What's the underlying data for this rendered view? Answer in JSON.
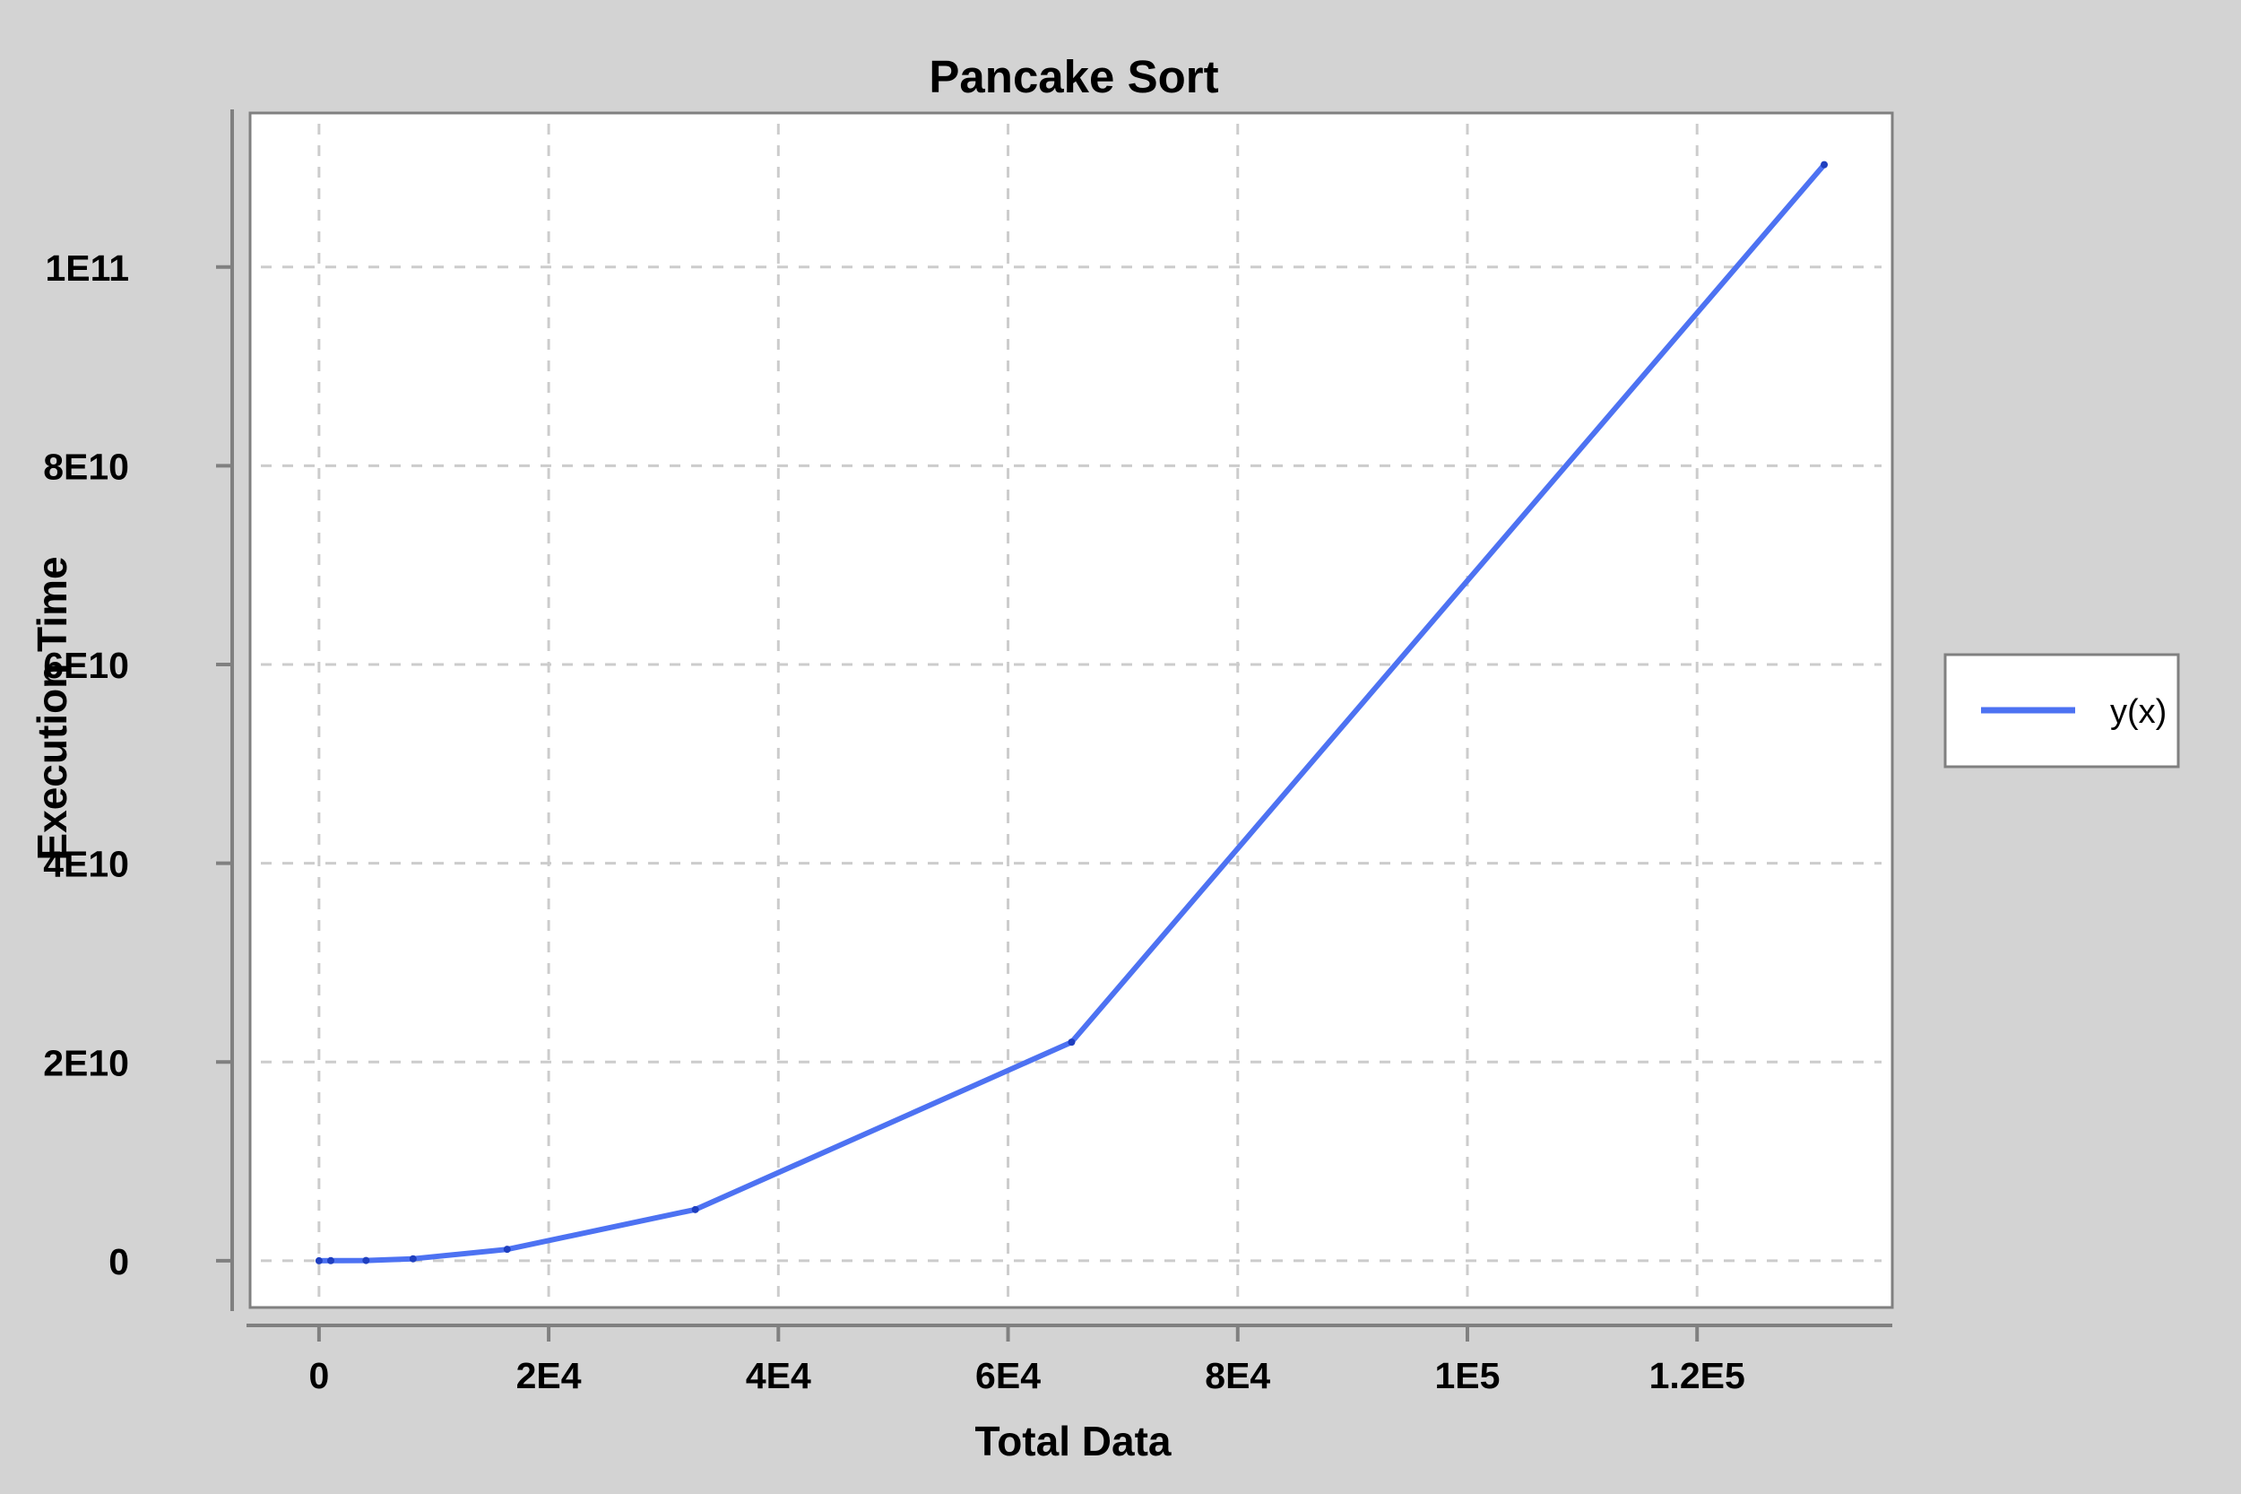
{
  "chart_data": {
    "type": "line",
    "title": "Pancake Sort",
    "xlabel": "Total Data",
    "ylabel": "Execution Time",
    "xlim": [
      -6000,
      137000
    ],
    "ylim": [
      -4700000000,
      115500000000
    ],
    "x_ticks": [
      {
        "value": 0,
        "label": "0"
      },
      {
        "value": 20000,
        "label": "2E4"
      },
      {
        "value": 40000,
        "label": "4E4"
      },
      {
        "value": 60000,
        "label": "6E4"
      },
      {
        "value": 80000,
        "label": "8E4"
      },
      {
        "value": 100000,
        "label": "1E5"
      },
      {
        "value": 120000,
        "label": "1.2E5"
      }
    ],
    "y_ticks": [
      {
        "value": 0,
        "label": "0"
      },
      {
        "value": 20000000000,
        "label": "2E10"
      },
      {
        "value": 40000000000,
        "label": "4E10"
      },
      {
        "value": 60000000000,
        "label": "6E10"
      },
      {
        "value": 80000000000,
        "label": "8E10"
      },
      {
        "value": 100000000000,
        "label": "1E11"
      }
    ],
    "grid": true,
    "legend_position": "right",
    "series": [
      {
        "name": "y(x)",
        "color": "#4d72f2",
        "x": [
          0,
          1024,
          4096,
          8192,
          16384,
          32768,
          65536,
          131072
        ],
        "y": [
          0,
          10000000,
          30000000,
          200000000,
          1150000000,
          5150000000,
          22000000000,
          110300000000
        ]
      }
    ]
  }
}
